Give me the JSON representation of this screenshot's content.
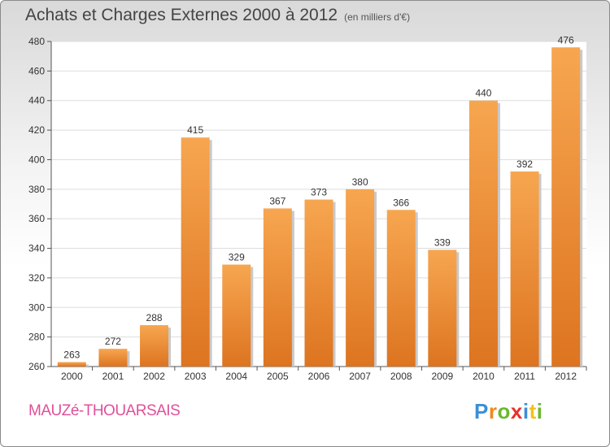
{
  "title": "Achats et Charges Externes 2000 à 2012",
  "unit": "(en milliers d'€)",
  "town": "MAUZé-THOUARSAIS",
  "logo": {
    "letters": [
      "P",
      "r",
      "o",
      "x",
      "i",
      "t",
      "i"
    ],
    "colors": [
      "#3a8fd8",
      "#f08a1c",
      "#6ab82e",
      "#e8312a",
      "#3a8fd8",
      "#f2c21a",
      "#6ab82e"
    ]
  },
  "chart_data": {
    "type": "bar",
    "categories": [
      "2000",
      "2001",
      "2002",
      "2003",
      "2004",
      "2005",
      "2006",
      "2007",
      "2008",
      "2009",
      "2010",
      "2011",
      "2012"
    ],
    "values": [
      263,
      272,
      288,
      415,
      329,
      367,
      373,
      380,
      366,
      339,
      440,
      392,
      476
    ],
    "ylim": [
      260,
      480
    ],
    "yticks": [
      260,
      280,
      300,
      320,
      340,
      360,
      380,
      400,
      420,
      440,
      460,
      480
    ],
    "grid": true,
    "bar_color": "#f08a30",
    "data_labels": true
  }
}
